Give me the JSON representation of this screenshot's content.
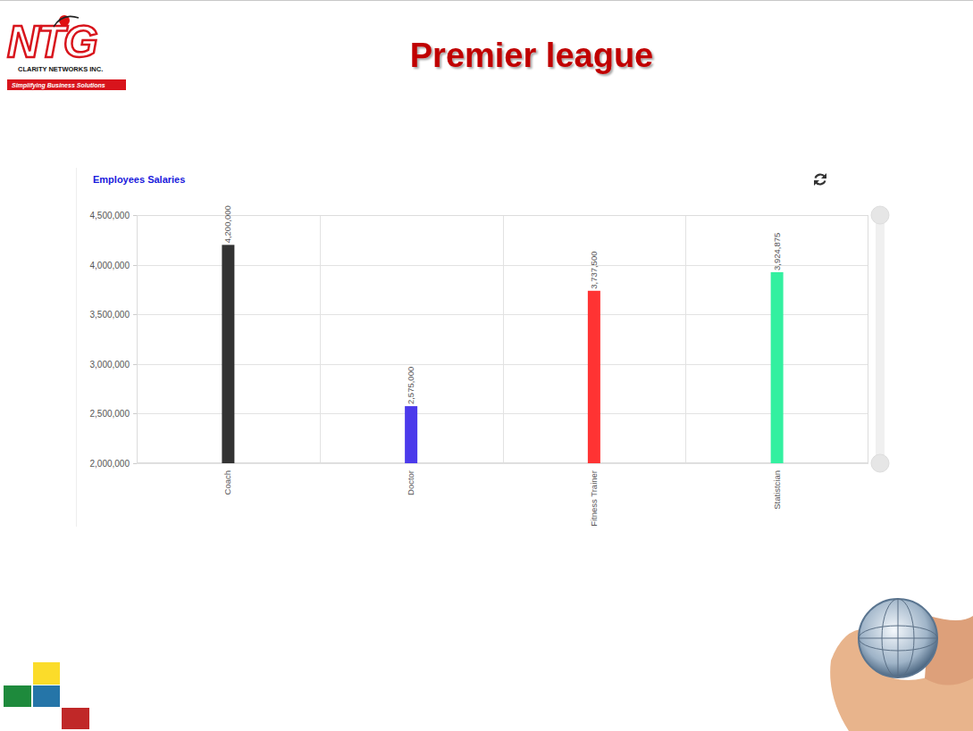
{
  "slide": {
    "logo": "NTG",
    "company": "CLARITY NETWORKS INC.",
    "tagline": "Simplifying Business Solutions",
    "title": "Premier league"
  },
  "chart_data": {
    "type": "bar",
    "title": "Employees Salaries",
    "categories": [
      "Coach",
      "Doctor",
      "Fitness Trainer",
      "Statistcian"
    ],
    "values": [
      4200000,
      2575000,
      3737500,
      3924875
    ],
    "value_labels": [
      "4,200,000",
      "2,575,000",
      "3,737,500",
      "3,924,875"
    ],
    "colors": [
      "#333333",
      "#4b3aeb",
      "#ff3333",
      "#33f0a0"
    ],
    "ylim": [
      2000000,
      4500000
    ],
    "yticks": [
      {
        "value": 2000000,
        "label": "2,000,000"
      },
      {
        "value": 2500000,
        "label": "2,500,000"
      },
      {
        "value": 3000000,
        "label": "3,000,000"
      },
      {
        "value": 3500000,
        "label": "3,500,000"
      },
      {
        "value": 4000000,
        "label": "4,000,000"
      },
      {
        "value": 4500000,
        "label": "4,500,000"
      }
    ],
    "grid": true,
    "data_labels": true
  }
}
